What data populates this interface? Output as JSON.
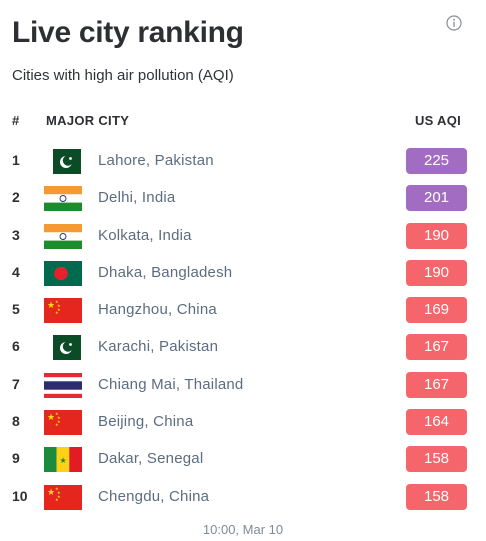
{
  "header": {
    "title": "Live city ranking",
    "subtitle": "Cities with high air pollution (AQI)"
  },
  "columns": {
    "rank": "#",
    "city": "MAJOR CITY",
    "aqi": "US AQI"
  },
  "colors": {
    "very_unhealthy": "#a36cc3",
    "unhealthy": "#f4666b"
  },
  "rows": [
    {
      "rank": "1",
      "city": "Lahore, Pakistan",
      "flag": "pakistan-flag-icon",
      "aqi": "225",
      "level": "very_unhealthy"
    },
    {
      "rank": "2",
      "city": "Delhi, India",
      "flag": "india-flag-icon",
      "aqi": "201",
      "level": "very_unhealthy"
    },
    {
      "rank": "3",
      "city": "Kolkata, India",
      "flag": "india-flag-icon",
      "aqi": "190",
      "level": "unhealthy"
    },
    {
      "rank": "4",
      "city": "Dhaka, Bangladesh",
      "flag": "bangladesh-flag-icon",
      "aqi": "190",
      "level": "unhealthy"
    },
    {
      "rank": "5",
      "city": "Hangzhou, China",
      "flag": "china-flag-icon",
      "aqi": "169",
      "level": "unhealthy"
    },
    {
      "rank": "6",
      "city": "Karachi, Pakistan",
      "flag": "pakistan-flag-icon",
      "aqi": "167",
      "level": "unhealthy"
    },
    {
      "rank": "7",
      "city": "Chiang Mai, Thailand",
      "flag": "thailand-flag-icon",
      "aqi": "167",
      "level": "unhealthy"
    },
    {
      "rank": "8",
      "city": "Beijing, China",
      "flag": "china-flag-icon",
      "aqi": "164",
      "level": "unhealthy"
    },
    {
      "rank": "9",
      "city": "Dakar, Senegal",
      "flag": "senegal-flag-icon",
      "aqi": "158",
      "level": "unhealthy"
    },
    {
      "rank": "10",
      "city": "Chengdu, China",
      "flag": "china-flag-icon",
      "aqi": "158",
      "level": "unhealthy"
    }
  ],
  "footer": {
    "timestamp": "10:00, Mar 10"
  }
}
